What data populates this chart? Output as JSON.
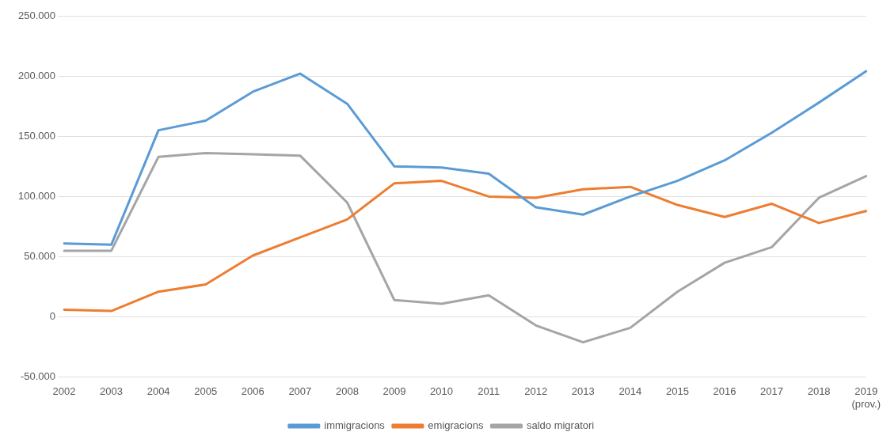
{
  "chart_data": {
    "type": "line",
    "categories": [
      "2002",
      "2003",
      "2004",
      "2005",
      "2006",
      "2007",
      "2008",
      "2009",
      "2010",
      "2011",
      "2012",
      "2013",
      "2014",
      "2015",
      "2016",
      "2017",
      "2018",
      "2019 (prov.)"
    ],
    "series": [
      {
        "name": "immigracions",
        "color": "#5b9bd5",
        "values": [
          61000,
          60000,
          155000,
          163000,
          187000,
          202000,
          177000,
          125000,
          124000,
          119000,
          91000,
          85000,
          100000,
          113000,
          130000,
          153000,
          178000,
          204000
        ]
      },
      {
        "name": "emigracions",
        "color": "#ed7d31",
        "values": [
          6000,
          5000,
          21000,
          27000,
          51000,
          66000,
          81000,
          111000,
          113000,
          100000,
          99000,
          106000,
          108000,
          93000,
          83000,
          94000,
          78000,
          88000
        ]
      },
      {
        "name": "saldo migratori",
        "color": "#a5a5a5",
        "values": [
          55000,
          55000,
          133000,
          136000,
          135000,
          134000,
          95000,
          14000,
          11000,
          18000,
          -7000,
          -21000,
          -9000,
          21000,
          45000,
          58000,
          99000,
          117000
        ]
      }
    ],
    "ylim": [
      -50000,
      250000
    ],
    "yticks": [
      {
        "value": -50000,
        "label": "-50.000"
      },
      {
        "value": 0,
        "label": "0"
      },
      {
        "value": 50000,
        "label": "50.000"
      },
      {
        "value": 100000,
        "label": "100.000"
      },
      {
        "value": 150000,
        "label": "150.000"
      },
      {
        "value": 200000,
        "label": "200.000"
      },
      {
        "value": 250000,
        "label": "250.000"
      }
    ],
    "grid": "y",
    "legend": "bottom",
    "marker": "none",
    "line_style": "solid"
  }
}
